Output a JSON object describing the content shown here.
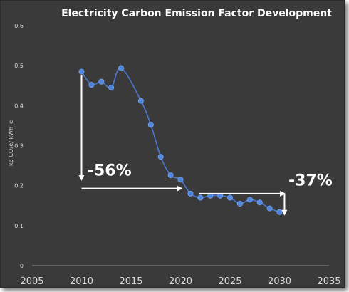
{
  "chart_data": {
    "type": "line",
    "title": "Electricity Carbon Emission Factor Development",
    "ylabel": "kg CO₂e/ kWh_e",
    "xlabel": "",
    "xlim": [
      2005,
      2035
    ],
    "ylim": [
      0,
      0.6
    ],
    "x_ticks": [
      "2005",
      "2010",
      "2015",
      "2020",
      "2025",
      "2030",
      "2035"
    ],
    "y_ticks": [
      "0",
      "0.1",
      "0.2",
      "0.3",
      "0.4",
      "0.5",
      "0.6"
    ],
    "grid": false,
    "series": [
      {
        "x": [
          2010,
          2011,
          2012,
          2013,
          2014,
          2016,
          2017,
          2018,
          2019,
          2020,
          2021,
          2022,
          2023,
          2024,
          2025,
          2026,
          2027,
          2028,
          2029,
          2030
        ],
        "y": [
          0.485,
          0.452,
          0.46,
          0.445,
          0.494,
          0.412,
          0.352,
          0.272,
          0.226,
          0.215,
          0.18,
          0.17,
          0.175,
          0.175,
          0.17,
          0.155,
          0.165,
          0.158,
          0.143,
          0.134
        ]
      }
    ],
    "annotations": [
      {
        "text": "-56%"
      },
      {
        "text": "-37%"
      }
    ],
    "colors": {
      "line": "#4a78d0",
      "marker": "#4f86e0",
      "background": "#3a3a3a",
      "arrow": "#ffffff"
    }
  }
}
